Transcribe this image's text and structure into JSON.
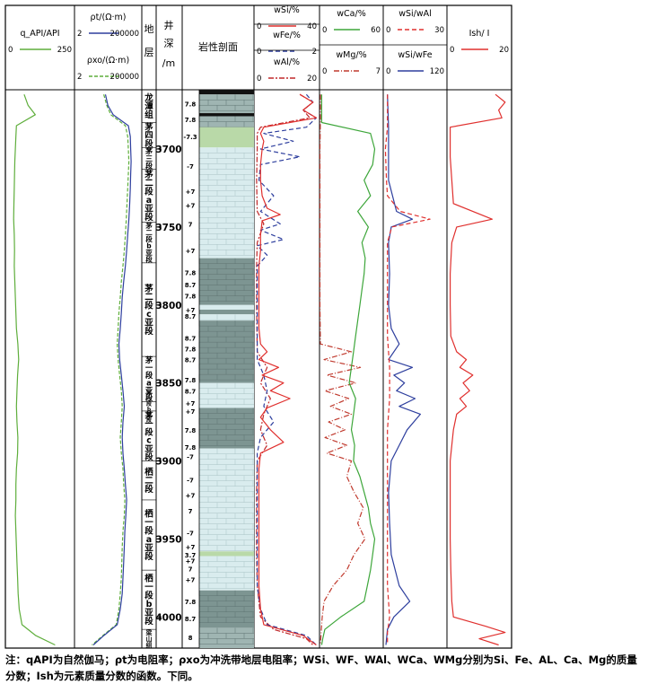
{
  "chart_data": {
    "type": "line",
    "depth_axis": {
      "label": "井深/m",
      "ticks": [
        3700,
        3750,
        3800,
        3850,
        3900,
        3950,
        4000
      ],
      "range": [
        3662,
        4020
      ]
    },
    "columns": {
      "gr": {
        "title": "q_API/API",
        "min": 0,
        "max": 250,
        "color": "#5fae3c"
      },
      "res": [
        {
          "title": "ρt/(Ω·m)",
          "min": 2,
          "max": 200000,
          "color": "#2e3f9e"
        },
        {
          "title": "ρxo/(Ω·m)",
          "min": 2,
          "max": 200000,
          "color": "#5fae3c"
        }
      ],
      "strata_header": "地层",
      "depth_header": "井深/m",
      "lith_header": "岩性剖面",
      "elem1": [
        {
          "title": "wSi/%",
          "min": 0,
          "max": 40,
          "color": "#e0302e"
        },
        {
          "title": "wFe/%",
          "min": 0,
          "max": 2,
          "color": "#2e3f9e"
        },
        {
          "title": "wAl/%",
          "min": 0,
          "max": 20,
          "color": "#c0282a"
        }
      ],
      "elem2": [
        {
          "title": "wCa/%",
          "min": 0,
          "max": 60,
          "color": "#3da63a"
        },
        {
          "title": "wMg/%",
          "min": 0,
          "max": 7,
          "color": "#c03a2e"
        }
      ],
      "elem3": [
        {
          "title": "wSi/wAl",
          "min": 0,
          "max": 30,
          "color": "#e0302e"
        },
        {
          "title": "wSi/wFe",
          "min": 0,
          "max": 120,
          "color": "#2e3f9e"
        }
      ],
      "ish": {
        "title": "Ish/ I",
        "min": 0,
        "max": 20,
        "color": "#e0302e"
      }
    },
    "strata": [
      {
        "label": "龙潭组",
        "top": 3662,
        "bot": 3683
      },
      {
        "label": "茅四段",
        "top": 3683,
        "bot": 3699
      },
      {
        "label": "茅三段",
        "top": 3699,
        "bot": 3713
      },
      {
        "label": "茅二段a亚段",
        "top": 3713,
        "bot": 3747
      },
      {
        "label": "茅二段b亚段",
        "top": 3747,
        "bot": 3773
      },
      {
        "label": "茅二段c亚段",
        "top": 3773,
        "bot": 3833
      },
      {
        "label": "茅一段a亚段",
        "top": 3833,
        "bot": 3862
      },
      {
        "label": "茅一段b亚段",
        "top": 3862,
        "bot": 3868
      },
      {
        "label": "茅一段c亚段",
        "top": 3868,
        "bot": 3900
      },
      {
        "label": "栖二段",
        "top": 3900,
        "bot": 3925
      },
      {
        "label": "栖一段a亚段",
        "top": 3925,
        "bot": 3970
      },
      {
        "label": "栖一段b亚段",
        "top": 3970,
        "bot": 4008
      },
      {
        "label": "梁山组",
        "top": 4008,
        "bot": 4020
      }
    ],
    "lith_codes": [
      {
        "label": "7.8",
        "depth": 3671
      },
      {
        "label": "7.8",
        "depth": 3681
      },
      {
        "label": "-7.3",
        "depth": 3692
      },
      {
        "label": "-7",
        "depth": 3711
      },
      {
        "label": "+7",
        "depth": 3727
      },
      {
        "label": "+7",
        "depth": 3736
      },
      {
        "label": "7",
        "depth": 3748
      },
      {
        "label": "+7",
        "depth": 3765
      },
      {
        "label": "7.8",
        "depth": 3779
      },
      {
        "label": "8.7",
        "depth": 3787
      },
      {
        "label": "7.8",
        "depth": 3794
      },
      {
        "label": "+7",
        "depth": 3803
      },
      {
        "label": "8.7",
        "depth": 3807
      },
      {
        "label": "8.7",
        "depth": 3821
      },
      {
        "label": "7.8",
        "depth": 3828
      },
      {
        "label": "8.7",
        "depth": 3835
      },
      {
        "label": "7.8",
        "depth": 3848
      },
      {
        "label": "8.7",
        "depth": 3855
      },
      {
        "label": "+7",
        "depth": 3863
      },
      {
        "label": "+7",
        "depth": 3868
      },
      {
        "label": "7.8",
        "depth": 3880
      },
      {
        "label": "7.8",
        "depth": 3891
      },
      {
        "label": "-7",
        "depth": 3897
      },
      {
        "label": "-7",
        "depth": 3912
      },
      {
        "label": "+7",
        "depth": 3922
      },
      {
        "label": "7",
        "depth": 3932
      },
      {
        "label": "-7",
        "depth": 3946
      },
      {
        "label": "+7",
        "depth": 3955
      },
      {
        "label": "3.7",
        "depth": 3960
      },
      {
        "label": "+7",
        "depth": 3964
      },
      {
        "label": "7",
        "depth": 3969
      },
      {
        "label": "+7",
        "depth": 3976
      },
      {
        "label": "7.8",
        "depth": 3990
      },
      {
        "label": "8.7",
        "depth": 4001
      },
      {
        "label": "8",
        "depth": 4013
      }
    ],
    "lith": [
      {
        "top": 3662,
        "bot": 3665,
        "type": "coal"
      },
      {
        "top": 3665,
        "bot": 3677,
        "type": "mudstone"
      },
      {
        "top": 3677,
        "bot": 3679,
        "type": "coal"
      },
      {
        "top": 3679,
        "bot": 3686,
        "type": "mudstone"
      },
      {
        "top": 3686,
        "bot": 3699,
        "type": "chert"
      },
      {
        "top": 3699,
        "bot": 3770,
        "type": "limestone"
      },
      {
        "top": 3770,
        "bot": 3800,
        "type": "dark"
      },
      {
        "top": 3800,
        "bot": 3803,
        "type": "limestone"
      },
      {
        "top": 3803,
        "bot": 3806,
        "type": "dark"
      },
      {
        "top": 3806,
        "bot": 3810,
        "type": "limestone"
      },
      {
        "top": 3810,
        "bot": 3850,
        "type": "dark"
      },
      {
        "top": 3850,
        "bot": 3866,
        "type": "limestone"
      },
      {
        "top": 3866,
        "bot": 3892,
        "type": "dark"
      },
      {
        "top": 3892,
        "bot": 3958,
        "type": "limestone"
      },
      {
        "top": 3958,
        "bot": 3961,
        "type": "chert"
      },
      {
        "top": 3961,
        "bot": 3983,
        "type": "limestone"
      },
      {
        "top": 3983,
        "bot": 4007,
        "type": "dark"
      },
      {
        "top": 4007,
        "bot": 4020,
        "type": "mudstone"
      }
    ],
    "series": {
      "gr": {
        "depth": [
          3665,
          3672,
          3678,
          3685,
          3692,
          3700,
          3708,
          3716,
          3725,
          3735,
          3745,
          3755,
          3765,
          3775,
          3785,
          3795,
          3805,
          3815,
          3825,
          3835,
          3845,
          3855,
          3865,
          3875,
          3885,
          3895,
          3905,
          3915,
          3925,
          3935,
          3945,
          3955,
          3965,
          3975,
          3985,
          3995,
          4005,
          4012,
          4018
        ],
        "value": [
          68,
          82,
          108,
          40,
          38,
          36,
          34,
          33,
          32,
          31,
          30,
          32,
          33,
          32,
          34,
          36,
          38,
          40,
          45,
          48,
          44,
          42,
          40,
          42,
          45,
          44,
          40,
          38,
          38,
          36,
          38,
          40,
          42,
          44,
          46,
          50,
          60,
          110,
          180
        ]
      },
      "rt": {
        "depth": [
          3665,
          3672,
          3678,
          3685,
          3692,
          3700,
          3708,
          3716,
          3725,
          3735,
          3745,
          3755,
          3765,
          3775,
          3785,
          3795,
          3805,
          3815,
          3825,
          3835,
          3845,
          3855,
          3865,
          3875,
          3885,
          3895,
          3905,
          3915,
          3925,
          3935,
          3945,
          3955,
          3965,
          3975,
          3985,
          3995,
          4005,
          4012,
          4018
        ],
        "value": [
          400,
          600,
          1500,
          20000,
          28000,
          30000,
          32000,
          30000,
          28000,
          25000,
          22000,
          18000,
          15000,
          12000,
          9000,
          7000,
          6000,
          5000,
          4000,
          4500,
          6000,
          8000,
          10000,
          8000,
          7000,
          8000,
          10000,
          12000,
          15000,
          13000,
          11000,
          10000,
          9000,
          8000,
          7000,
          5000,
          3000,
          300,
          50
        ]
      },
      "rxo": {
        "depth": [
          3665,
          3672,
          3678,
          3685,
          3692,
          3700,
          3708,
          3716,
          3725,
          3735,
          3745,
          3755,
          3765,
          3775,
          3785,
          3795,
          3805,
          3815,
          3825,
          3835,
          3845,
          3855,
          3865,
          3875,
          3885,
          3895,
          3905,
          3915,
          3925,
          3935,
          3945,
          3955,
          3965,
          3975,
          3985,
          3995,
          4005,
          4012,
          4018
        ],
        "value": [
          300,
          500,
          1000,
          12000,
          18000,
          20000,
          22000,
          20000,
          18000,
          16000,
          14000,
          12000,
          10000,
          8000,
          6000,
          5000,
          4000,
          3500,
          3000,
          3500,
          4500,
          6000,
          7000,
          6000,
          5000,
          6000,
          8000,
          9000,
          11000,
          10000,
          8000,
          7000,
          6500,
          6000,
          5000,
          4000,
          2500,
          250,
          40
        ]
      },
      "si": {
        "depth": [
          3665,
          3670,
          3675,
          3680,
          3686,
          3690,
          3695,
          3700,
          3710,
          3720,
          3730,
          3738,
          3742,
          3746,
          3755,
          3765,
          3775,
          3785,
          3795,
          3805,
          3815,
          3825,
          3830,
          3835,
          3840,
          3845,
          3850,
          3855,
          3860,
          3866,
          3872,
          3880,
          3888,
          3895,
          3905,
          3920,
          3935,
          3950,
          3965,
          3980,
          3995,
          4005,
          4012,
          4018
        ],
        "value": [
          28,
          36,
          30,
          38,
          6,
          4,
          6,
          5,
          4,
          4,
          5,
          8,
          16,
          5,
          4,
          4,
          3,
          3,
          3,
          3,
          3,
          4,
          8,
          3,
          15,
          5,
          18,
          10,
          22,
          8,
          4,
          10,
          18,
          4,
          3,
          3,
          3,
          3,
          3,
          3,
          4,
          6,
          30,
          38
        ]
      },
      "fe": {
        "depth": [
          3665,
          3670,
          3675,
          3680,
          3686,
          3690,
          3695,
          3700,
          3705,
          3710,
          3720,
          3730,
          3740,
          3748,
          3752,
          3758,
          3762,
          3768,
          3775,
          3785,
          3795,
          3805,
          3815,
          3825,
          3835,
          3845,
          3855,
          3865,
          3875,
          3885,
          3895,
          3905,
          3920,
          3935,
          3950,
          3965,
          3980,
          3995,
          4005,
          4012,
          4018
        ],
        "value": [
          1.6,
          1.8,
          1.5,
          1.9,
          1.6,
          0.3,
          1.2,
          0.2,
          1.4,
          0.2,
          0.15,
          0.6,
          0.2,
          0.8,
          0.2,
          0.9,
          0.1,
          0.4,
          0.1,
          0.1,
          0.1,
          0.1,
          0.1,
          0.1,
          0.1,
          0.3,
          0.4,
          0.3,
          0.6,
          0.2,
          0.1,
          0.1,
          0.1,
          0.1,
          0.1,
          0.1,
          0.1,
          0.2,
          0.4,
          1.6,
          1.9
        ]
      },
      "al": {
        "depth": [
          3665,
          3670,
          3675,
          3680,
          3686,
          3690,
          3700,
          3720,
          3740,
          3748,
          3760,
          3775,
          3800,
          3830,
          3840,
          3850,
          3860,
          3870,
          3880,
          3890,
          3900,
          3920,
          3940,
          3960,
          3980,
          4000,
          4008,
          4014,
          4018
        ],
        "value": [
          14,
          18,
          15,
          17,
          2,
          1,
          1,
          0.8,
          1,
          3,
          1,
          0.8,
          0.8,
          1,
          4,
          2,
          5,
          3,
          2,
          4,
          1,
          0.8,
          0.8,
          0.8,
          1,
          2,
          6,
          16,
          18
        ]
      },
      "ca": {
        "depth": [
          3665,
          3675,
          3683,
          3690,
          3700,
          3710,
          3720,
          3730,
          3740,
          3750,
          3760,
          3770,
          3780,
          3790,
          3800,
          3810,
          3820,
          3830,
          3840,
          3850,
          3860,
          3870,
          3880,
          3890,
          3900,
          3910,
          3920,
          3930,
          3940,
          3950,
          3960,
          3970,
          3980,
          3990,
          4000,
          4008,
          4014,
          4018
        ],
        "value": [
          2,
          2,
          2,
          48,
          52,
          50,
          42,
          48,
          36,
          46,
          40,
          43,
          42,
          40,
          38,
          36,
          34,
          32,
          30,
          28,
          34,
          32,
          30,
          33,
          32,
          38,
          42,
          46,
          48,
          52,
          50,
          48,
          45,
          42,
          20,
          5,
          3,
          2
        ]
      },
      "mg": {
        "depth": [
          3665,
          3680,
          3700,
          3750,
          3800,
          3825,
          3830,
          3835,
          3840,
          3845,
          3850,
          3855,
          3860,
          3865,
          3870,
          3875,
          3880,
          3885,
          3890,
          3895,
          3900,
          3910,
          3920,
          3930,
          3940,
          3950,
          3960,
          3970,
          3980,
          3990,
          4000,
          4008,
          4018
        ],
        "value": [
          0.1,
          0.1,
          0.05,
          0.05,
          0.05,
          0.1,
          3.5,
          0.5,
          4.5,
          0.8,
          4.0,
          0.6,
          3.2,
          1.2,
          3.5,
          1.0,
          2.8,
          0.6,
          3.0,
          0.8,
          3.5,
          3.0,
          3.8,
          4.8,
          4.2,
          5.0,
          3.8,
          3.0,
          1.5,
          0.5,
          0.3,
          0.2,
          0.1
        ]
      },
      "si_al": {
        "depth": [
          3665,
          3686,
          3700,
          3720,
          3730,
          3740,
          3745,
          3750,
          3760,
          3780,
          3800,
          3820,
          3840,
          3860,
          3880,
          3900,
          3920,
          3940,
          3960,
          3980,
          4000,
          4010,
          4018
        ],
        "value": [
          2,
          2,
          1,
          1.5,
          2,
          8,
          22,
          4,
          2,
          2,
          2,
          2,
          3,
          3,
          2,
          2,
          2,
          2,
          2,
          2,
          3,
          2,
          2
        ]
      },
      "si_fe": {
        "depth": [
          3665,
          3686,
          3700,
          3720,
          3740,
          3745,
          3750,
          3760,
          3780,
          3800,
          3815,
          3825,
          3835,
          3840,
          3845,
          3850,
          3855,
          3860,
          3865,
          3870,
          3880,
          3890,
          3900,
          3920,
          3940,
          3960,
          3980,
          3990,
          4000,
          4008,
          4018
        ],
        "value": [
          8,
          10,
          10,
          10,
          25,
          55,
          15,
          10,
          12,
          10,
          15,
          30,
          10,
          55,
          20,
          40,
          25,
          60,
          30,
          70,
          45,
          30,
          15,
          10,
          12,
          15,
          30,
          50,
          20,
          8,
          5
        ]
      },
      "ish": {
        "depth": [
          3665,
          3670,
          3675,
          3680,
          3686,
          3695,
          3705,
          3720,
          3735,
          3745,
          3750,
          3760,
          3780,
          3800,
          3820,
          3830,
          3835,
          3840,
          3845,
          3850,
          3855,
          3860,
          3865,
          3870,
          3880,
          3890,
          3900,
          3915,
          3930,
          3950,
          3970,
          3990,
          4000,
          4006,
          4010,
          4014,
          4018
        ],
        "value": [
          15,
          18,
          16,
          17,
          1,
          1,
          1,
          1.5,
          2,
          14,
          3,
          1.5,
          1,
          1,
          1.2,
          3,
          6,
          4,
          8,
          5,
          7,
          4,
          6,
          3,
          2,
          1.5,
          1,
          1,
          1,
          1,
          1.2,
          1.5,
          2,
          12,
          18,
          10,
          16
        ]
      }
    }
  },
  "note": "注：qAPI为自然伽马；ρt为电阻率；ρxo为冲洗带地层电阻率；WSi、WF、WAl、WCa、WMg分别为Si、Fe、AL、Ca、Mg的质量分数；Ish为元素质量分数的函数。下同。"
}
